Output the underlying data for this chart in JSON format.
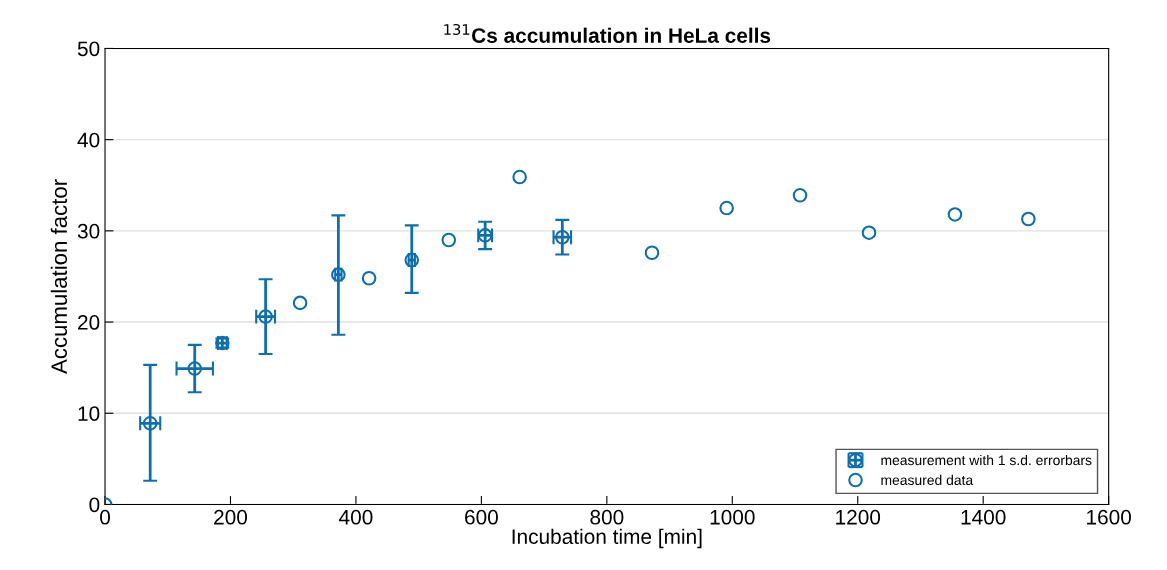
{
  "chart_data": {
    "type": "scatter",
    "title": "$^{131}$Cs accumulation in HeLa cells",
    "xlabel": "Incubation time [min]",
    "ylabel": "Accumulation factor",
    "xlim": [
      0,
      1600
    ],
    "xticks": [
      0,
      200,
      400,
      600,
      800,
      1000,
      1200,
      1400,
      1600
    ],
    "ylim": [
      0,
      50
    ],
    "yticks": [
      0,
      10,
      20,
      30,
      40,
      50
    ],
    "grid": "y",
    "legend": "bottom right",
    "marker": "circle",
    "series": [
      {
        "name": "measurement with 1 s.d. errorbars",
        "color": "#0b6fb0",
        "x": [
          72,
          143,
          187,
          256,
          372,
          489,
          606,
          729
        ],
        "values": [
          8.9,
          14.9,
          17.7,
          20.6,
          25.2,
          26.8,
          29.5,
          29.3
        ],
        "errors": [
          [
            2.6,
            15.3
          ],
          [
            12.3,
            17.5
          ],
          [
            17.2,
            18.2
          ],
          [
            16.5,
            24.7
          ],
          [
            18.6,
            31.7
          ],
          [
            23.2,
            30.6
          ],
          [
            28.0,
            31.0
          ],
          [
            27.4,
            31.2
          ]
        ],
        "xerrors": [
          16,
          29,
          7,
          15,
          5,
          5,
          11,
          14
        ]
      },
      {
        "name": "measured data",
        "color": "#0b6fb0",
        "x": [
          0,
          311,
          421,
          548,
          661,
          872,
          991,
          1108,
          1218,
          1355,
          1472
        ],
        "values": [
          0,
          22.1,
          24.8,
          29.0,
          35.9,
          27.6,
          32.5,
          33.9,
          29.8,
          31.8,
          31.3
        ]
      }
    ]
  }
}
